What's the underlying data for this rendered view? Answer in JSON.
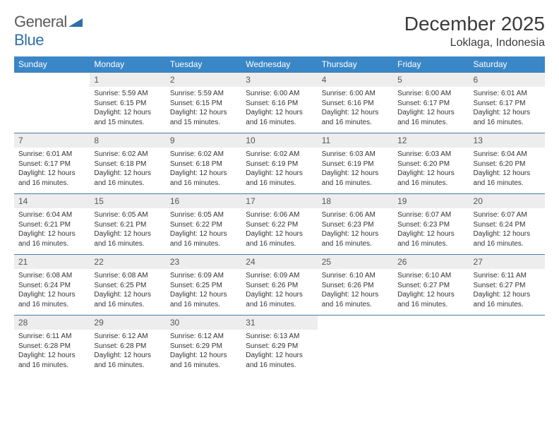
{
  "logo": {
    "text1": "General",
    "text2": "Blue"
  },
  "title": "December 2025",
  "location": "Loklaga, Indonesia",
  "colors": {
    "header_bg": "#3a87c8",
    "header_text": "#ffffff",
    "band_bg": "#ededed",
    "rule": "#4a7ba8",
    "logo_gray": "#5a5a5a",
    "logo_blue": "#2f6fa7"
  },
  "dow": [
    "Sunday",
    "Monday",
    "Tuesday",
    "Wednesday",
    "Thursday",
    "Friday",
    "Saturday"
  ],
  "weeks": [
    [
      {
        "n": "",
        "lines": []
      },
      {
        "n": "1",
        "lines": [
          "Sunrise: 5:59 AM",
          "Sunset: 6:15 PM",
          "Daylight: 12 hours and 15 minutes."
        ]
      },
      {
        "n": "2",
        "lines": [
          "Sunrise: 5:59 AM",
          "Sunset: 6:15 PM",
          "Daylight: 12 hours and 15 minutes."
        ]
      },
      {
        "n": "3",
        "lines": [
          "Sunrise: 6:00 AM",
          "Sunset: 6:16 PM",
          "Daylight: 12 hours and 16 minutes."
        ]
      },
      {
        "n": "4",
        "lines": [
          "Sunrise: 6:00 AM",
          "Sunset: 6:16 PM",
          "Daylight: 12 hours and 16 minutes."
        ]
      },
      {
        "n": "5",
        "lines": [
          "Sunrise: 6:00 AM",
          "Sunset: 6:17 PM",
          "Daylight: 12 hours and 16 minutes."
        ]
      },
      {
        "n": "6",
        "lines": [
          "Sunrise: 6:01 AM",
          "Sunset: 6:17 PM",
          "Daylight: 12 hours and 16 minutes."
        ]
      }
    ],
    [
      {
        "n": "7",
        "lines": [
          "Sunrise: 6:01 AM",
          "Sunset: 6:17 PM",
          "Daylight: 12 hours and 16 minutes."
        ]
      },
      {
        "n": "8",
        "lines": [
          "Sunrise: 6:02 AM",
          "Sunset: 6:18 PM",
          "Daylight: 12 hours and 16 minutes."
        ]
      },
      {
        "n": "9",
        "lines": [
          "Sunrise: 6:02 AM",
          "Sunset: 6:18 PM",
          "Daylight: 12 hours and 16 minutes."
        ]
      },
      {
        "n": "10",
        "lines": [
          "Sunrise: 6:02 AM",
          "Sunset: 6:19 PM",
          "Daylight: 12 hours and 16 minutes."
        ]
      },
      {
        "n": "11",
        "lines": [
          "Sunrise: 6:03 AM",
          "Sunset: 6:19 PM",
          "Daylight: 12 hours and 16 minutes."
        ]
      },
      {
        "n": "12",
        "lines": [
          "Sunrise: 6:03 AM",
          "Sunset: 6:20 PM",
          "Daylight: 12 hours and 16 minutes."
        ]
      },
      {
        "n": "13",
        "lines": [
          "Sunrise: 6:04 AM",
          "Sunset: 6:20 PM",
          "Daylight: 12 hours and 16 minutes."
        ]
      }
    ],
    [
      {
        "n": "14",
        "lines": [
          "Sunrise: 6:04 AM",
          "Sunset: 6:21 PM",
          "Daylight: 12 hours and 16 minutes."
        ]
      },
      {
        "n": "15",
        "lines": [
          "Sunrise: 6:05 AM",
          "Sunset: 6:21 PM",
          "Daylight: 12 hours and 16 minutes."
        ]
      },
      {
        "n": "16",
        "lines": [
          "Sunrise: 6:05 AM",
          "Sunset: 6:22 PM",
          "Daylight: 12 hours and 16 minutes."
        ]
      },
      {
        "n": "17",
        "lines": [
          "Sunrise: 6:06 AM",
          "Sunset: 6:22 PM",
          "Daylight: 12 hours and 16 minutes."
        ]
      },
      {
        "n": "18",
        "lines": [
          "Sunrise: 6:06 AM",
          "Sunset: 6:23 PM",
          "Daylight: 12 hours and 16 minutes."
        ]
      },
      {
        "n": "19",
        "lines": [
          "Sunrise: 6:07 AM",
          "Sunset: 6:23 PM",
          "Daylight: 12 hours and 16 minutes."
        ]
      },
      {
        "n": "20",
        "lines": [
          "Sunrise: 6:07 AM",
          "Sunset: 6:24 PM",
          "Daylight: 12 hours and 16 minutes."
        ]
      }
    ],
    [
      {
        "n": "21",
        "lines": [
          "Sunrise: 6:08 AM",
          "Sunset: 6:24 PM",
          "Daylight: 12 hours and 16 minutes."
        ]
      },
      {
        "n": "22",
        "lines": [
          "Sunrise: 6:08 AM",
          "Sunset: 6:25 PM",
          "Daylight: 12 hours and 16 minutes."
        ]
      },
      {
        "n": "23",
        "lines": [
          "Sunrise: 6:09 AM",
          "Sunset: 6:25 PM",
          "Daylight: 12 hours and 16 minutes."
        ]
      },
      {
        "n": "24",
        "lines": [
          "Sunrise: 6:09 AM",
          "Sunset: 6:26 PM",
          "Daylight: 12 hours and 16 minutes."
        ]
      },
      {
        "n": "25",
        "lines": [
          "Sunrise: 6:10 AM",
          "Sunset: 6:26 PM",
          "Daylight: 12 hours and 16 minutes."
        ]
      },
      {
        "n": "26",
        "lines": [
          "Sunrise: 6:10 AM",
          "Sunset: 6:27 PM",
          "Daylight: 12 hours and 16 minutes."
        ]
      },
      {
        "n": "27",
        "lines": [
          "Sunrise: 6:11 AM",
          "Sunset: 6:27 PM",
          "Daylight: 12 hours and 16 minutes."
        ]
      }
    ],
    [
      {
        "n": "28",
        "lines": [
          "Sunrise: 6:11 AM",
          "Sunset: 6:28 PM",
          "Daylight: 12 hours and 16 minutes."
        ]
      },
      {
        "n": "29",
        "lines": [
          "Sunrise: 6:12 AM",
          "Sunset: 6:28 PM",
          "Daylight: 12 hours and 16 minutes."
        ]
      },
      {
        "n": "30",
        "lines": [
          "Sunrise: 6:12 AM",
          "Sunset: 6:29 PM",
          "Daylight: 12 hours and 16 minutes."
        ]
      },
      {
        "n": "31",
        "lines": [
          "Sunrise: 6:13 AM",
          "Sunset: 6:29 PM",
          "Daylight: 12 hours and 16 minutes."
        ]
      },
      {
        "n": "",
        "lines": []
      },
      {
        "n": "",
        "lines": []
      },
      {
        "n": "",
        "lines": []
      }
    ]
  ]
}
